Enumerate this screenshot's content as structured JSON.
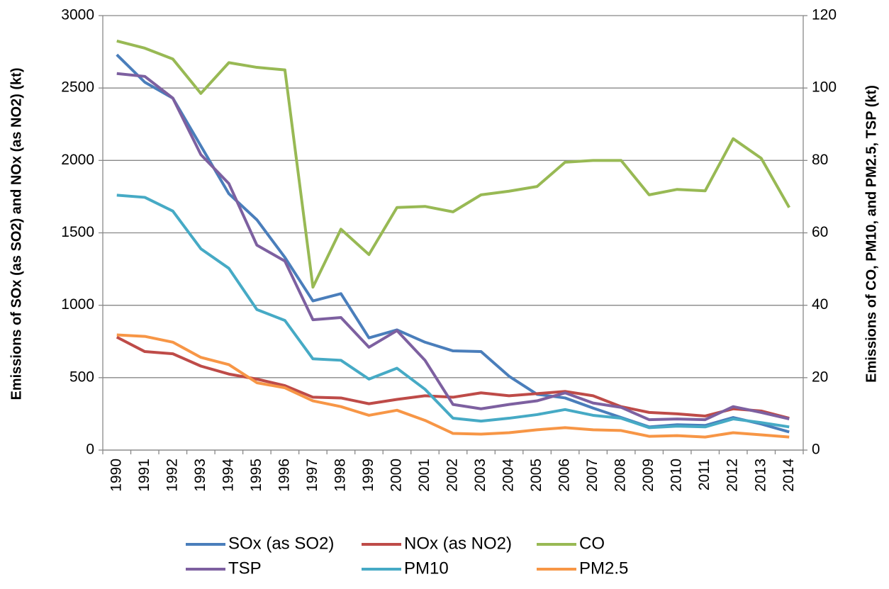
{
  "chart_data": {
    "type": "line",
    "ylabel": "Emissions of SOx (as SO2) and NOx (as NO2) (kt)",
    "y2label": "Emissions of CO, PM10, and PM2.5, TSP (kt)",
    "categories": [
      "1990",
      "1991",
      "1992",
      "1993",
      "1994",
      "1995",
      "1996",
      "1997",
      "1998",
      "1999",
      "2000",
      "2001",
      "2002",
      "2003",
      "2004",
      "2005",
      "2006",
      "2007",
      "2008",
      "2009",
      "2010",
      "2011",
      "2012",
      "2013",
      "2014"
    ],
    "ylim": [
      0,
      3000
    ],
    "yticks": [
      0,
      500,
      1000,
      1500,
      2000,
      2500,
      3000
    ],
    "y2lim": [
      0,
      120
    ],
    "y2ticks": [
      0,
      20,
      40,
      60,
      80,
      100,
      120
    ],
    "grid": true,
    "series": [
      {
        "name": "SOx (as SO2)",
        "color": "#4a7ebb",
        "values": [
          2730,
          2540,
          2430,
          2100,
          1770,
          1590,
          1330,
          1030,
          1080,
          775,
          830,
          745,
          685,
          680,
          510,
          385,
          360,
          290,
          225,
          160,
          175,
          170,
          225,
          180,
          125
        ]
      },
      {
        "name": "NOx (as NO2)",
        "color": "#be4b48",
        "values": [
          780,
          680,
          665,
          580,
          525,
          490,
          445,
          365,
          360,
          320,
          350,
          375,
          365,
          395,
          375,
          390,
          405,
          375,
          300,
          260,
          250,
          235,
          285,
          270,
          220
        ]
      },
      {
        "name": "CO",
        "color": "#98b954",
        "axis": "y2",
        "values": [
          113,
          111,
          108,
          98.5,
          107,
          105.7,
          105,
          45,
          61,
          54,
          67,
          67.3,
          65.8,
          70.5,
          71.5,
          72.8,
          79.5,
          80,
          80,
          70.5,
          72,
          71.6,
          86,
          80.6,
          67
        ]
      },
      {
        "name": "TSP",
        "color": "#7d60a0",
        "axis": "y2",
        "values": [
          104,
          103.2,
          97.2,
          81.6,
          73.6,
          56.6,
          52.2,
          36,
          36.6,
          28.4,
          33,
          24.8,
          12.6,
          11.4,
          12.6,
          13.6,
          15.8,
          13,
          11.8,
          8.4,
          8.6,
          8.4,
          12,
          10.4,
          8.6
        ]
      },
      {
        "name": "PM10",
        "color": "#46aac5",
        "axis": "y2",
        "values": [
          70.4,
          69.8,
          66,
          55.6,
          50.2,
          38.8,
          35.8,
          25.2,
          24.8,
          19.6,
          22.6,
          16.8,
          8.8,
          8,
          8.8,
          9.8,
          11.2,
          9.6,
          8.8,
          6.2,
          6.6,
          6.4,
          8.6,
          7.6,
          6.4
        ]
      },
      {
        "name": "PM2.5",
        "color": "#f79646",
        "axis": "y2",
        "values": [
          31.8,
          31.4,
          29.8,
          25.6,
          23.6,
          18.6,
          17.2,
          13.6,
          12,
          9.6,
          11,
          8.2,
          4.6,
          4.4,
          4.8,
          5.6,
          6.2,
          5.6,
          5.4,
          3.8,
          4,
          3.6,
          4.8,
          4.2,
          3.6
        ]
      }
    ]
  }
}
